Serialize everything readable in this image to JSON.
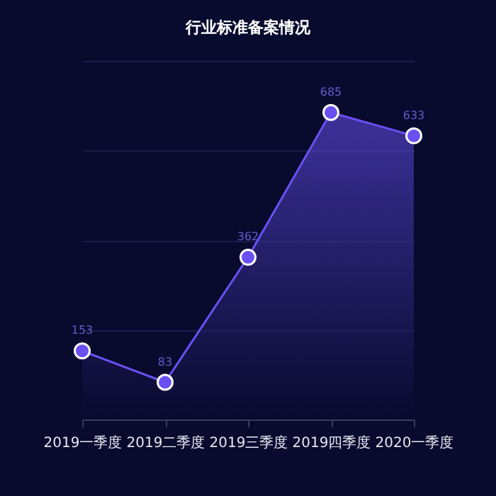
{
  "chart_data": {
    "type": "area",
    "title": "行业标准备案情况",
    "categories": [
      "2019一季度",
      "2019二季度",
      "2019三季度",
      "2019四季度",
      "2020一季度"
    ],
    "series": [
      {
        "color": "#6a50f2",
        "values": [
          153,
          83,
          362,
          685,
          633
        ]
      }
    ],
    "ylim": [
      0,
      800
    ],
    "yticks": [
      0,
      200,
      400,
      600,
      800
    ],
    "grid": "y",
    "tick_labels": "x",
    "marker": "circle",
    "data_labels": true
  }
}
